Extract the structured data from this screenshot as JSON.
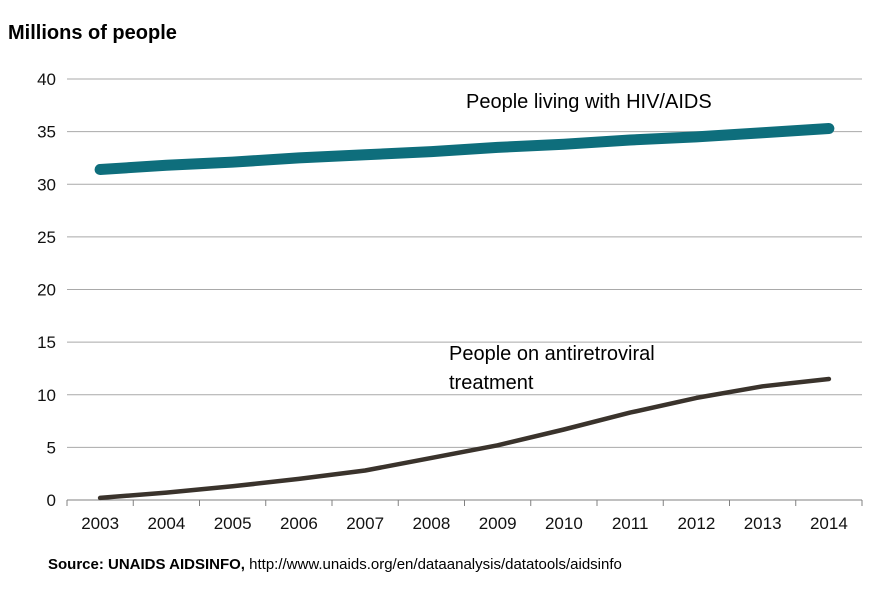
{
  "header": {
    "title": "Millions of people"
  },
  "annotations": {
    "hiv": {
      "label": "People living with HIV/AIDS"
    },
    "art": {
      "lines": [
        "People on antiretroviral",
        "treatment"
      ]
    }
  },
  "source": {
    "prefix": "Source: UNAIDS AIDSINFO,",
    "url": "http://www.unaids.org/en/dataanalysis/datatools/aidsinfo"
  },
  "colors": {
    "hiv_line": "#0e6e7c",
    "art_line": "#3a332c",
    "gridline": "#a9a9a9",
    "axis": "#808080",
    "tick_text": "#111111"
  },
  "chart_data": {
    "type": "line",
    "title": "Millions of people",
    "xlabel": "",
    "ylabel": "Millions of people",
    "x": [
      2003,
      2004,
      2005,
      2006,
      2007,
      2008,
      2009,
      2010,
      2011,
      2012,
      2013,
      2014
    ],
    "xticks": [
      "2003",
      "2004",
      "2005",
      "2006",
      "2007",
      "2008",
      "2009",
      "2010",
      "2011",
      "2012",
      "2013",
      "2014"
    ],
    "series": [
      {
        "name": "People living with HIV/AIDS",
        "color": "#0e6e7c",
        "stroke_width": 11,
        "values": [
          31.4,
          31.8,
          32.1,
          32.5,
          32.8,
          33.1,
          33.5,
          33.8,
          34.2,
          34.5,
          34.9,
          35.3
        ]
      },
      {
        "name": "People on antiretroviral treatment",
        "color": "#3a332c",
        "stroke_width": 4.5,
        "values": [
          0.2,
          0.7,
          1.3,
          2.0,
          2.8,
          4.0,
          5.2,
          6.7,
          8.3,
          9.7,
          10.8,
          11.5
        ]
      }
    ],
    "ylim": [
      0,
      40
    ],
    "yticks": [
      0,
      5,
      10,
      15,
      20,
      25,
      30,
      35,
      40
    ],
    "grid": "horizontal",
    "legend": "inline-annotations"
  }
}
